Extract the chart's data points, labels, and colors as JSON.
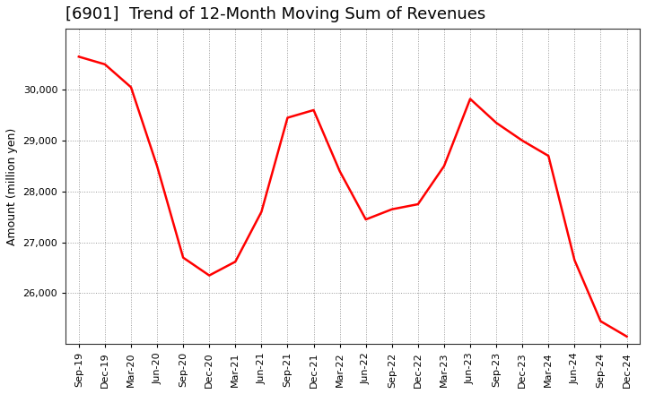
{
  "title": "[6901]  Trend of 12-Month Moving Sum of Revenues",
  "ylabel": "Amount (million yen)",
  "x_labels": [
    "Sep-19",
    "Dec-19",
    "Mar-20",
    "Jun-20",
    "Sep-20",
    "Dec-20",
    "Mar-21",
    "Jun-21",
    "Sep-21",
    "Dec-21",
    "Mar-22",
    "Jun-22",
    "Sep-22",
    "Dec-22",
    "Mar-23",
    "Jun-23",
    "Sep-23",
    "Dec-23",
    "Mar-24",
    "Jun-24",
    "Sep-24",
    "Dec-24"
  ],
  "y_values": [
    30650,
    30500,
    30050,
    28500,
    26700,
    26350,
    26620,
    27600,
    29450,
    29600,
    28400,
    27450,
    27650,
    27750,
    28500,
    29820,
    29350,
    29000,
    28700,
    26650,
    25450,
    25150
  ],
  "line_color": "#ff0000",
  "line_width": 1.8,
  "background_color": "#ffffff",
  "plot_bg_color": "#ffffff",
  "grid_color": "#999999",
  "ylim_min": 25000,
  "ylim_max": 31200,
  "yticks": [
    26000,
    27000,
    28000,
    29000,
    30000
  ],
  "title_fontsize": 13,
  "title_fontweight": "normal",
  "axis_label_fontsize": 9,
  "tick_fontsize": 8,
  "ylabel_fontsize": 9
}
